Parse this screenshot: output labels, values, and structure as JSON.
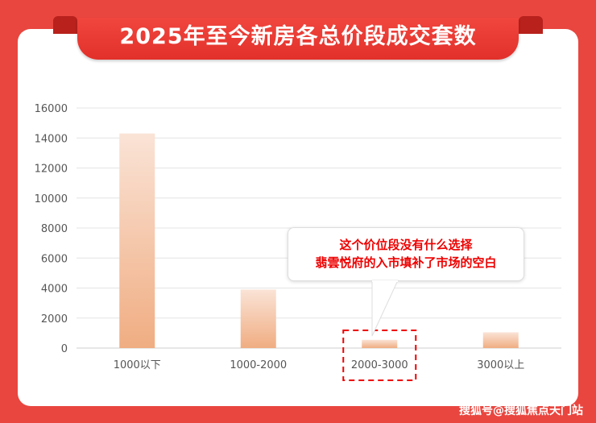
{
  "title": "2025年至今新房各总价段成交套数",
  "callout": {
    "line1": "这个价位段没有什么选择",
    "line2": "翡雲悦府的入市填补了市场的空白"
  },
  "watermark": "搜狐号@搜狐焦点天门站",
  "colors": {
    "background": "#e9463f",
    "bar_top": "#fae3d6",
    "bar_bottom": "#f0ad82",
    "highlight": "#ee0000"
  },
  "chart_data": {
    "type": "bar",
    "title": "2025年至今新房各总价段成交套数",
    "categories": [
      "1000以下",
      "1000-2000",
      "2000-3000",
      "3000以上"
    ],
    "values": [
      14300,
      3900,
      550,
      1050
    ],
    "ylim": [
      0,
      16000
    ],
    "yticks": [
      0,
      2000,
      4000,
      6000,
      8000,
      10000,
      12000,
      14000,
      16000
    ],
    "grid": true,
    "highlighted_category": "2000-3000"
  }
}
